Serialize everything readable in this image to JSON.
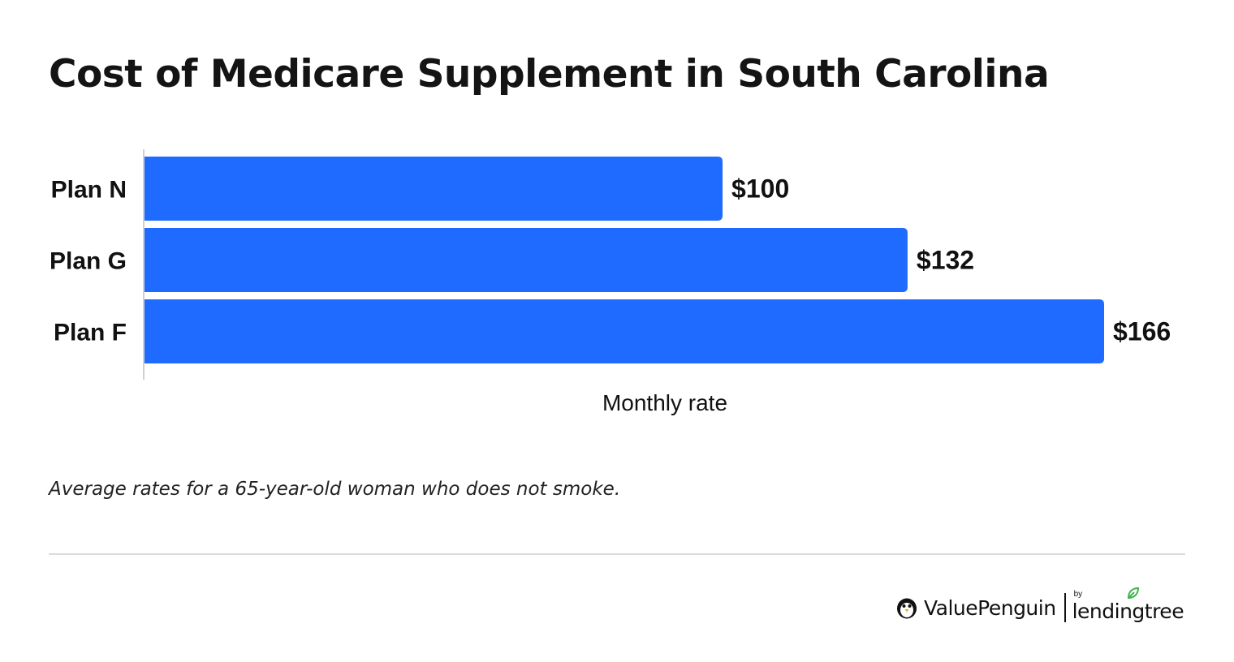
{
  "chart_data": {
    "type": "bar",
    "orientation": "horizontal",
    "title": "Cost of Medicare Supplement in South Carolina",
    "categories": [
      "Plan N",
      "Plan G",
      "Plan F"
    ],
    "values": [
      100,
      132,
      166
    ],
    "value_labels": [
      "$100",
      "$132",
      "$166"
    ],
    "xlabel": "Monthly rate",
    "ylabel": "",
    "xlim": [
      0,
      166
    ],
    "grid": false,
    "legend": "none",
    "bar_color": "#1f6bff"
  },
  "footnote": "Average rates for a 65-year-old woman who does not smoke.",
  "branding": {
    "logo_text": "ValuePenguin",
    "by_text": "by",
    "partner_text": "lendingtree",
    "logo_icon": "penguin-icon",
    "partner_icon": "leaf-icon"
  }
}
